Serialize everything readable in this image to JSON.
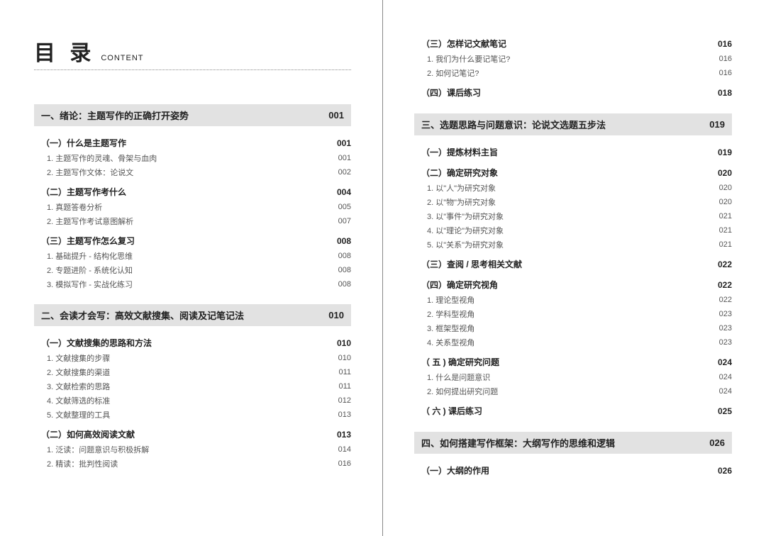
{
  "header": {
    "title_main": "目 录",
    "title_sub": "CONTENT"
  },
  "left": {
    "chapters": [
      {
        "title": "一、绪论：主题写作的正确打开姿势",
        "page": "001",
        "sections": [
          {
            "title": "（一）什么是主题写作",
            "page": "001",
            "items": [
              {
                "title": "1. 主题写作的灵魂、骨架与血肉",
                "page": "001"
              },
              {
                "title": "2. 主题写作文体：论说文",
                "page": "002"
              }
            ]
          },
          {
            "title": "（二）主题写作考什么",
            "page": "004",
            "items": [
              {
                "title": "1. 真题答卷分析",
                "page": "005"
              },
              {
                "title": "2. 主题写作考试意图解析",
                "page": "007"
              }
            ]
          },
          {
            "title": "（三）主题写作怎么复习",
            "page": "008",
            "items": [
              {
                "title": "1. 基础提升 - 结构化思维",
                "page": "008"
              },
              {
                "title": "2. 专题进阶 - 系统化认知",
                "page": "008"
              },
              {
                "title": "3. 模拟写作 - 实战化练习",
                "page": "008"
              }
            ]
          }
        ]
      },
      {
        "title": "二、会读才会写：高效文献搜集、阅读及记笔记法",
        "page": "010",
        "sections": [
          {
            "title": "（一）文献搜集的思路和方法",
            "page": "010",
            "items": [
              {
                "title": "1. 文献搜集的步骤",
                "page": "010"
              },
              {
                "title": "2. 文献搜集的渠道",
                "page": "011"
              },
              {
                "title": "3. 文献检索的思路",
                "page": "011"
              },
              {
                "title": "4. 文献筛选的标准",
                "page": "012"
              },
              {
                "title": "5. 文献整理的工具",
                "page": "013"
              }
            ]
          },
          {
            "title": "（二）如何高效阅读文献",
            "page": "013",
            "items": [
              {
                "title": "1. 泛读：问题意识与积极拆解",
                "page": "014"
              },
              {
                "title": "2. 精读：批判性阅读",
                "page": "016"
              }
            ]
          }
        ]
      }
    ]
  },
  "right": {
    "top_sections": [
      {
        "title": "（三）怎样记文献笔记",
        "page": "016",
        "items": [
          {
            "title": "1. 我们为什么要记笔记?",
            "page": "016"
          },
          {
            "title": "2. 如何记笔记?",
            "page": "016"
          }
        ]
      },
      {
        "title": "（四）课后练习",
        "page": "018",
        "items": []
      }
    ],
    "chapters": [
      {
        "title": "三、选题思路与问题意识：论说文选题五步法",
        "page": "019",
        "sections": [
          {
            "title": "（一）提炼材料主旨",
            "page": "019",
            "items": []
          },
          {
            "title": "（二）确定研究对象",
            "page": "020",
            "items": [
              {
                "title": "1. 以\"人\"为研究对象",
                "page": "020"
              },
              {
                "title": "2. 以\"物\"为研究对象",
                "page": "020"
              },
              {
                "title": "3. 以\"事件\"为研究对象",
                "page": "021"
              },
              {
                "title": "4. 以\"理论\"为研究对象",
                "page": "021"
              },
              {
                "title": "5. 以\"关系\"为研究对象",
                "page": "021"
              }
            ]
          },
          {
            "title": "（三）查阅 / 思考相关文献",
            "page": "022",
            "items": []
          },
          {
            "title": "（四）确定研究视角",
            "page": "022",
            "items": [
              {
                "title": "1. 理论型视角",
                "page": "022"
              },
              {
                "title": "2. 学科型视角",
                "page": "023"
              },
              {
                "title": "3. 框架型视角",
                "page": "023"
              },
              {
                "title": "4. 关系型视角",
                "page": "023"
              }
            ]
          },
          {
            "title": "（ 五 ) 确定研究问题",
            "page": "024",
            "items": [
              {
                "title": "1. 什么是问题意识",
                "page": "024"
              },
              {
                "title": "2. 如何提出研究问题",
                "page": "024"
              }
            ]
          },
          {
            "title": "（ 六 ) 课后练习",
            "page": "025",
            "items": []
          }
        ]
      },
      {
        "title": "四、如何搭建写作框架：大纲写作的思维和逻辑",
        "page": "026",
        "sections": [
          {
            "title": "（一）大纲的作用",
            "page": "026",
            "items": []
          }
        ]
      }
    ]
  }
}
